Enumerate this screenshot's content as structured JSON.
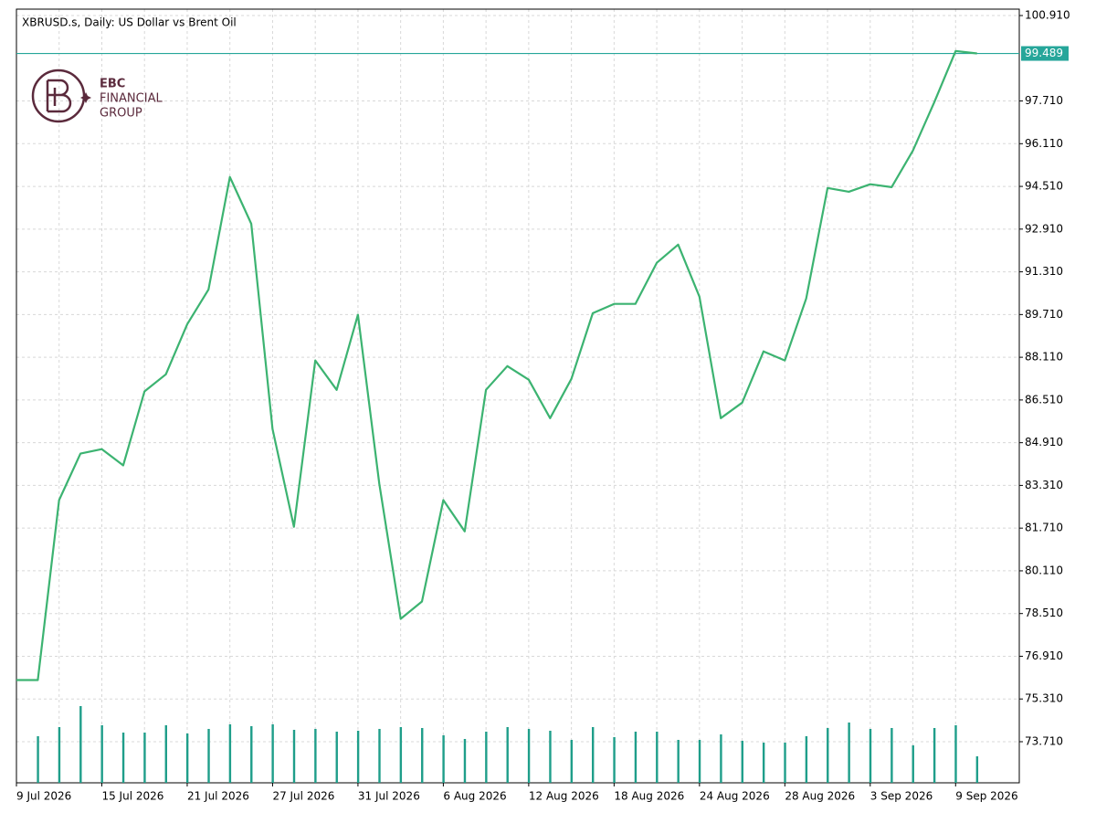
{
  "chart_data": {
    "type": "line",
    "title": "XBRUSD.s, Daily:  US Dollar vs Brent Oil",
    "logo": {
      "brand": "EBC",
      "line1": "FINANCIAL",
      "line2": "GROUP"
    },
    "categories": [
      "9 Jul 2026",
      null,
      null,
      null,
      "15 Jul 2026",
      null,
      null,
      null,
      "21 Jul 2026",
      null,
      null,
      null,
      "27 Jul 2026",
      null,
      null,
      null,
      "31 Jul 2026",
      null,
      null,
      null,
      "6 Aug 2026",
      null,
      null,
      null,
      "12 Aug 2026",
      null,
      null,
      null,
      "18 Aug 2026",
      null,
      null,
      null,
      "24 Aug 2026",
      null,
      null,
      null,
      "28 Aug 2026",
      null,
      null,
      null,
      "3 Sep 2026",
      null,
      null,
      null,
      "9 Sep 2026",
      null
    ],
    "values": [
      76.02,
      76.02,
      82.76,
      84.5,
      84.67,
      84.06,
      86.83,
      87.47,
      89.35,
      90.65,
      94.86,
      93.11,
      85.42,
      81.76,
      87.99,
      86.89,
      89.7,
      83.37,
      78.31,
      78.96,
      82.76,
      81.59,
      86.89,
      87.78,
      87.27,
      85.83,
      87.3,
      89.76,
      90.11,
      90.11,
      91.65,
      92.33,
      90.38,
      85.83,
      86.41,
      88.33,
      87.99,
      90.31,
      94.45,
      94.31,
      94.59,
      94.48,
      95.85,
      97.66,
      99.58,
      99.489
    ],
    "color": "#3cb371",
    "volume": {
      "color": "#1f9e8a",
      "values": [
        null,
        51,
        61,
        84,
        63,
        55,
        55,
        63,
        54,
        59,
        64,
        62,
        64,
        58,
        59,
        56,
        57,
        59,
        61,
        60,
        52,
        48,
        56,
        61,
        59,
        57,
        47,
        61,
        50,
        56,
        56,
        47,
        47,
        53,
        46,
        44,
        44,
        51,
        60,
        66,
        59,
        60,
        41,
        60,
        63,
        29
      ]
    },
    "last_price": 99.489,
    "last_price_color": "#26a69a",
    "ylim": [
      72.17,
      101.15
    ],
    "yticks": [
      {
        "value": 73.71,
        "label": "73.710"
      },
      {
        "value": 75.31,
        "label": "75.310"
      },
      {
        "value": 76.91,
        "label": "76.910"
      },
      {
        "value": 78.51,
        "label": "78.510"
      },
      {
        "value": 80.11,
        "label": "80.110"
      },
      {
        "value": 81.71,
        "label": "81.710"
      },
      {
        "value": 83.31,
        "label": "83.310"
      },
      {
        "value": 84.91,
        "label": "84.910"
      },
      {
        "value": 86.51,
        "label": "86.510"
      },
      {
        "value": 88.11,
        "label": "88.110"
      },
      {
        "value": 89.71,
        "label": "89.710"
      },
      {
        "value": 91.31,
        "label": "91.310"
      },
      {
        "value": 92.91,
        "label": "92.910"
      },
      {
        "value": 94.51,
        "label": "94.510"
      },
      {
        "value": 96.11,
        "label": "96.110"
      },
      {
        "value": 97.71,
        "label": "97.710"
      },
      {
        "value": 100.91,
        "label": "100.910"
      }
    ],
    "grid": true
  }
}
